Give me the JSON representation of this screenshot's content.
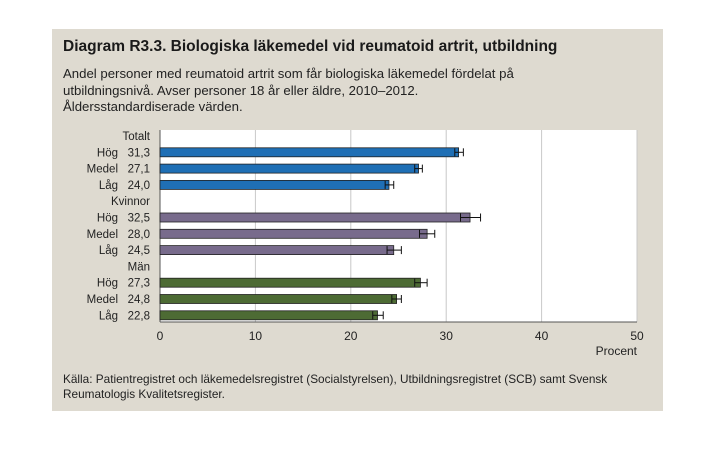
{
  "figure": {
    "title": "Diagram R3.3. Biologiska läkemedel vid reumatoid artrit, utbildning",
    "subtitle_lines": [
      "Andel personer med reumatoid artrit som får biologiska läkemedel fördelat på",
      "utbildningsnivå. Avser personer 18 år eller äldre, 2010–2012.",
      "Åldersstandardiserade värden."
    ],
    "source_lines": [
      "Källa: Patientregistret och läkemedelsregistret (Socialstyrelsen), Utbildningsregistret (SCB) samt Svensk",
      "Reumatologis Kvalitetsregister."
    ]
  },
  "chart_data": {
    "type": "bar",
    "orientation": "horizontal",
    "xlabel": "Procent",
    "xlim": [
      0,
      50
    ],
    "xticks": [
      0,
      10,
      20,
      30,
      40,
      50
    ],
    "grid": true,
    "groups": [
      {
        "name": "Totalt",
        "color": "#1f6fb5",
        "bars": [
          {
            "category": "Hög",
            "value": 31.3,
            "value_label": "31,3",
            "ci": [
              30.9,
              31.8
            ]
          },
          {
            "category": "Medel",
            "value": 27.1,
            "value_label": "27,1",
            "ci": [
              26.7,
              27.5
            ]
          },
          {
            "category": "Låg",
            "value": 24.0,
            "value_label": "24,0",
            "ci": [
              23.6,
              24.5
            ]
          }
        ]
      },
      {
        "name": "Kvinnor",
        "color": "#786b8c",
        "bars": [
          {
            "category": "Hög",
            "value": 32.5,
            "value_label": "32,5",
            "ci": [
              31.5,
              33.6
            ]
          },
          {
            "category": "Medel",
            "value": 28.0,
            "value_label": "28,0",
            "ci": [
              27.2,
              28.8
            ]
          },
          {
            "category": "Låg",
            "value": 24.5,
            "value_label": "24,5",
            "ci": [
              23.8,
              25.3
            ]
          }
        ]
      },
      {
        "name": "Män",
        "color": "#4d6b34",
        "bars": [
          {
            "category": "Hög",
            "value": 27.3,
            "value_label": "27,3",
            "ci": [
              26.7,
              28.0
            ]
          },
          {
            "category": "Medel",
            "value": 24.8,
            "value_label": "24,8",
            "ci": [
              24.3,
              25.3
            ]
          },
          {
            "category": "Låg",
            "value": 22.8,
            "value_label": "22,8",
            "ci": [
              22.3,
              23.4
            ]
          }
        ]
      }
    ]
  }
}
